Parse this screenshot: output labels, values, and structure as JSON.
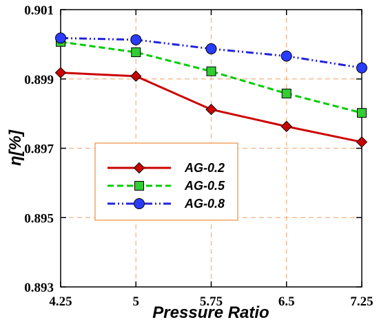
{
  "chart_data": {
    "type": "line",
    "xlabel": "Pressure Ratio",
    "ylabel": "η[%]",
    "x": [
      4.25,
      5,
      5.75,
      6.5,
      7.25
    ],
    "x_ticks": [
      "4.25",
      "5",
      "5.75",
      "6.5",
      "7.25"
    ],
    "xlim": [
      4.25,
      7.25
    ],
    "ylim": [
      0.893,
      0.901
    ],
    "y_ticks": [
      "0.893",
      "0.895",
      "0.897",
      "0.899",
      "0.901"
    ],
    "grid": true,
    "legend_position": "center-left",
    "series": [
      {
        "name": "AG-0.2",
        "color": "#cc0000",
        "marker_fill": "#cc0000",
        "marker": "diamond",
        "line": "solid",
        "values": [
          0.89918,
          0.89908,
          0.89812,
          0.89763,
          0.89718
        ]
      },
      {
        "name": "AG-0.5",
        "color": "#00cc00",
        "marker_fill": "#33cc33",
        "marker": "square",
        "line": "dashed",
        "values": [
          0.90007,
          0.89977,
          0.89922,
          0.89858,
          0.89802
        ]
      },
      {
        "name": "AG-0.8",
        "color": "#2222dd",
        "marker_fill": "#2a3cff",
        "marker": "circle",
        "line": "dashdotdot",
        "values": [
          0.90018,
          0.90013,
          0.89987,
          0.89966,
          0.89932
        ]
      }
    ]
  },
  "colors": {
    "grid": "#f4b183",
    "legend_border": "#f4a460",
    "axis": "#000000"
  }
}
